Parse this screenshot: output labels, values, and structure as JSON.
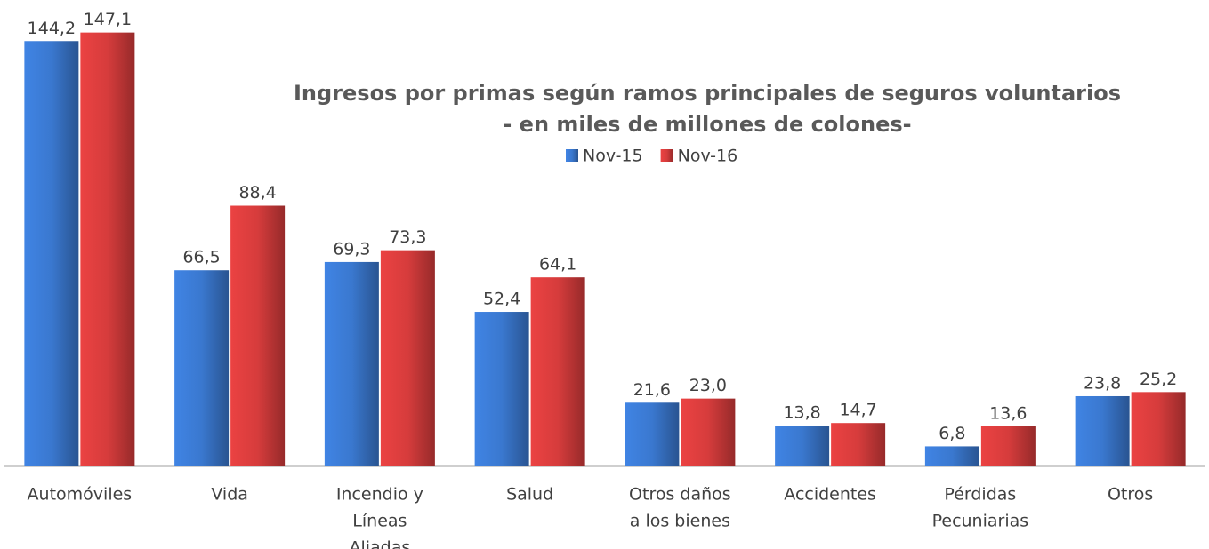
{
  "chart_data": {
    "type": "bar",
    "title": "Ingresos por primas según ramos principales de seguros voluntarios",
    "subtitle": "- en miles de millones de colones-",
    "categories": [
      [
        "Automóviles"
      ],
      [
        "Vida"
      ],
      [
        "Incendio y",
        "Líneas",
        "Aliadas"
      ],
      [
        "Salud"
      ],
      [
        "Otros daños",
        "a los bienes"
      ],
      [
        "Accidentes"
      ],
      [
        "Pérdidas",
        "Pecuniarias"
      ],
      [
        "Otros"
      ]
    ],
    "series": [
      {
        "name": "Nov-15",
        "color": "#3a78cf",
        "values": [
          144.2,
          66.5,
          69.3,
          52.4,
          21.6,
          13.8,
          6.8,
          23.8
        ],
        "value_labels": [
          "144,2",
          "66,5",
          "69,3",
          "52,4",
          "21,6",
          "13,8",
          "6,8",
          "23,8"
        ]
      },
      {
        "name": "Nov-16",
        "color": "#d63c3c",
        "values": [
          147.1,
          88.4,
          73.3,
          64.1,
          23.0,
          14.7,
          13.6,
          25.2
        ],
        "value_labels": [
          "147,1",
          "88,4",
          "73,3",
          "64,1",
          "23,0",
          "14,7",
          "13,6",
          "25,2"
        ]
      }
    ],
    "ylim": [
      0,
      150
    ],
    "legend": "top"
  }
}
